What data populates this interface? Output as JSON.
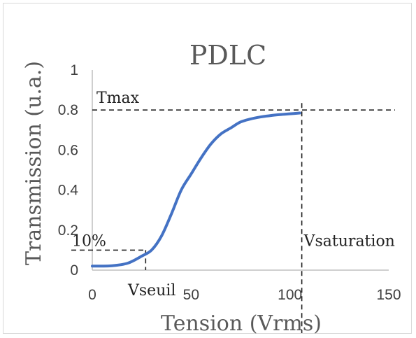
{
  "chart_data": {
    "type": "line",
    "title": "PDLC",
    "xlabel": "Tension (Vrms)",
    "ylabel": "Transmission (u.a.)",
    "xlim": [
      0,
      150
    ],
    "ylim": [
      0,
      1
    ],
    "x_ticks": [
      "0",
      "50",
      "100",
      "150"
    ],
    "y_ticks": [
      "0",
      "0.2",
      "0.4",
      "0.6",
      "0.8",
      "1"
    ],
    "grid": false,
    "series": [
      {
        "color": "#4472c4",
        "x": [
          0,
          10,
          18,
          25,
          30,
          35,
          40,
          45,
          50,
          55,
          60,
          65,
          70,
          75,
          80,
          85,
          90,
          95,
          100,
          105
        ],
        "y": [
          0.02,
          0.022,
          0.035,
          0.07,
          0.1,
          0.17,
          0.28,
          0.4,
          0.48,
          0.56,
          0.63,
          0.68,
          0.71,
          0.74,
          0.755,
          0.765,
          0.772,
          0.777,
          0.781,
          0.785
        ]
      }
    ],
    "annotations": {
      "tmax": {
        "label": "Tmax",
        "y": 0.8
      },
      "ten_percent": {
        "label": "10%",
        "y": 0.1
      },
      "vseuil": {
        "label": "Vseuil",
        "x": 27
      },
      "vsaturation": {
        "label": "Vsaturation",
        "x": 106
      }
    }
  }
}
